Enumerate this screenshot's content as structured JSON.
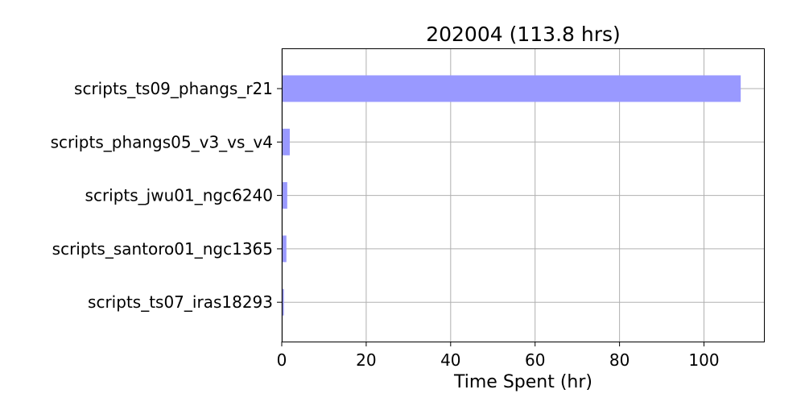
{
  "chart_data": {
    "type": "bar",
    "orientation": "horizontal",
    "title": "202004 (113.8 hrs)",
    "xlabel": "Time Spent (hr)",
    "ylabel": "",
    "categories": [
      "scripts_ts09_phangs_r21",
      "scripts_phangs05_v3_vs_v4",
      "scripts_jwu01_ngc6240",
      "scripts_santoro01_ngc1365",
      "scripts_ts07_iras18293"
    ],
    "values": [
      108.7,
      1.9,
      1.3,
      1.1,
      0.5
    ],
    "xlim": [
      0,
      114.2
    ],
    "xticks": [
      "0",
      "20",
      "40",
      "60",
      "80",
      "100"
    ],
    "grid": true,
    "bar_color": "#9999ff",
    "legend": "none"
  }
}
